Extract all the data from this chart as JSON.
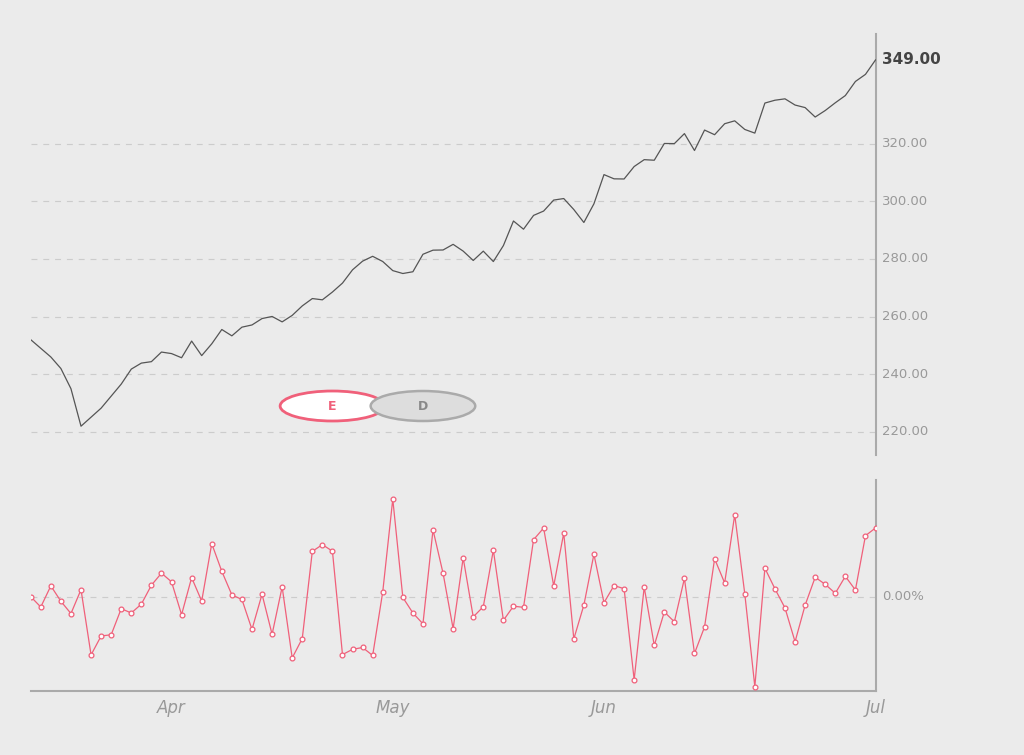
{
  "background_color": "#ebebeb",
  "price_line_color": "#555555",
  "osc_line_color": "#f0607a",
  "osc_marker_edge_color": "#f0607a",
  "grid_color": "#cccccc",
  "axis_label_color": "#999999",
  "price_ytick_vals": [
    220,
    240,
    260,
    280,
    300,
    320
  ],
  "price_ytick_labels": [
    "220.00",
    "240.00",
    "260.00",
    "280.00",
    "300.00",
    "320.00"
  ],
  "last_price_val": 349,
  "last_price_label": "349.00",
  "osc_ytick_label": "0.00%",
  "xtick_labels": [
    "Apr",
    "May",
    "Jun",
    "Jul"
  ],
  "indicator_E_fill": "#f0607a",
  "indicator_E_border": "#f0607a",
  "indicator_D_fill": "#bbbbbb",
  "indicator_D_border": "#aaaaaa",
  "price_ylim": [
    212,
    358
  ],
  "osc_ylim": [
    -0.085,
    0.105
  ],
  "n_points": 85,
  "xtick_positions": [
    14,
    36,
    57,
    84
  ]
}
